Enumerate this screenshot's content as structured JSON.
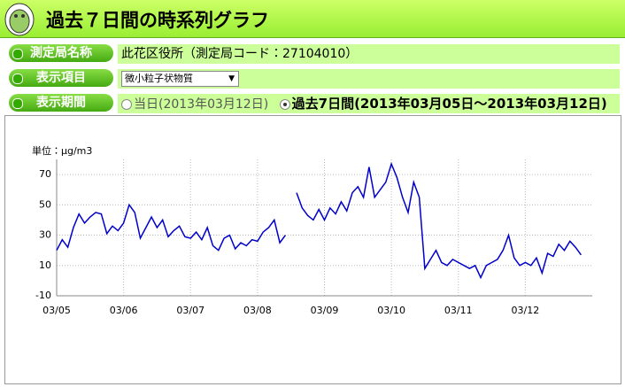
{
  "header": {
    "title": "過去７日間の時系列グラフ"
  },
  "form": {
    "station_label": "測定局名称",
    "station_value": "此花区役所（測定局コード：27104010）",
    "item_label": "表示項目",
    "item_value": "微小粒子状物質",
    "period_label": "表示期間",
    "period_options": [
      "当日(2013年03月12日)",
      "過去7日間(2013年03月05日～2013年03月12日)"
    ]
  },
  "chart_data": {
    "type": "line",
    "y_label": "単位：μg/m3",
    "categories": [
      "03/05",
      null,
      null,
      null,
      null,
      null,
      null,
      null,
      null,
      null,
      null,
      null,
      "03/06",
      null,
      null,
      null,
      null,
      null,
      null,
      null,
      null,
      null,
      null,
      null,
      "03/07",
      null,
      null,
      null,
      null,
      null,
      null,
      null,
      null,
      null,
      null,
      null,
      "03/08",
      null,
      null,
      null,
      null,
      null,
      null,
      null,
      null,
      null,
      null,
      null,
      "03/09",
      null,
      null,
      null,
      null,
      null,
      null,
      null,
      null,
      null,
      null,
      null,
      "03/10",
      null,
      null,
      null,
      null,
      null,
      null,
      null,
      null,
      null,
      null,
      null,
      "03/11",
      null,
      null,
      null,
      null,
      null,
      null,
      null,
      null,
      null,
      null,
      null,
      "03/12",
      null,
      null,
      null,
      null,
      null,
      null,
      null,
      null,
      null,
      null,
      null
    ],
    "series": [
      {
        "color": "#0000cc",
        "values": [
          20,
          27,
          22,
          35,
          44,
          38,
          42,
          45,
          44,
          31,
          36,
          33,
          38,
          50,
          45,
          28,
          35,
          42,
          35,
          40,
          29,
          33,
          36,
          29,
          28,
          32,
          27,
          35,
          23,
          20,
          28,
          30,
          21,
          25,
          23,
          27,
          26,
          32,
          35,
          40,
          25,
          30,
          null,
          58,
          48,
          43,
          40,
          47,
          40,
          48,
          44,
          52,
          46,
          58,
          62,
          55,
          75,
          55,
          60,
          65,
          77,
          68,
          55,
          45,
          65,
          55,
          8,
          14,
          20,
          12,
          10,
          14,
          12,
          10,
          8,
          10,
          2,
          10,
          12,
          14,
          20,
          30,
          15,
          10,
          12,
          10,
          15,
          5,
          18,
          16,
          24,
          20,
          26,
          22,
          17,
          null
        ]
      }
    ],
    "ylim": [
      -10,
      80
    ],
    "yticks": [
      -10,
      10,
      30,
      50,
      70
    ],
    "grid": true
  }
}
